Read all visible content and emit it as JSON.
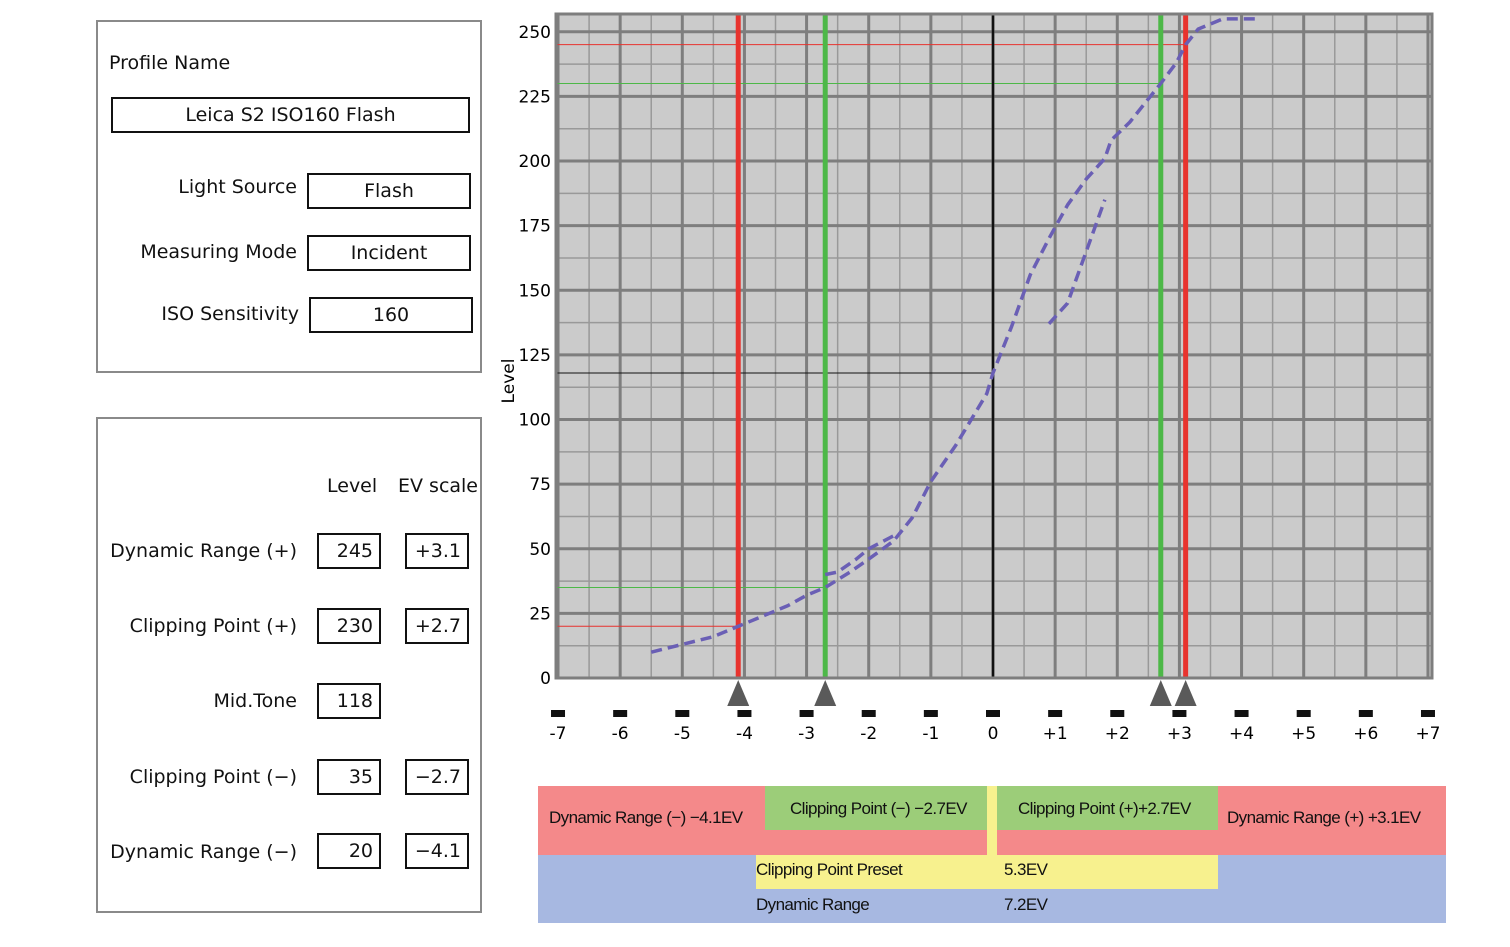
{
  "profile": {
    "name_label": "Profile Name",
    "name_value": "Leica S2 ISO160 Flash",
    "light_source_label": "Light Source",
    "light_source_value": "Flash",
    "measuring_mode_label": "Measuring Mode",
    "measuring_mode_value": "Incident",
    "iso_label": "ISO Sensitivity",
    "iso_value": "160"
  },
  "values": {
    "level_header": "Level",
    "ev_header": "EV scale",
    "rows": [
      {
        "label": "Dynamic Range (+)",
        "level": "245",
        "ev": "+3.1"
      },
      {
        "label": "Clipping Point (+)",
        "level": "230",
        "ev": "+2.7"
      },
      {
        "label": "Mid.Tone",
        "level": "118",
        "ev": ""
      },
      {
        "label": "Clipping Point (−)",
        "level": "35",
        "ev": "−2.7"
      },
      {
        "label": "Dynamic Range (−)",
        "level": "20",
        "ev": "−4.1"
      }
    ]
  },
  "chart_data": {
    "type": "line",
    "ylabel": "Level",
    "xlabel": "",
    "xlim": [
      -7,
      7
    ],
    "ylim": [
      0,
      255
    ],
    "y_ticks": [
      0,
      25,
      50,
      75,
      100,
      125,
      150,
      175,
      200,
      225,
      250
    ],
    "x_ticks": [
      -7,
      -6,
      -5,
      -4,
      -3,
      -2,
      -1,
      0,
      1,
      2,
      3,
      4,
      5,
      6,
      7
    ],
    "x_tick_labels": [
      "-7",
      "-6",
      "-5",
      "-4",
      "-3",
      "-2",
      "-1",
      "0",
      "+1",
      "+2",
      "+3",
      "+4",
      "+5",
      "+6",
      "+7"
    ],
    "grid": true,
    "curve": {
      "color": "#6a5fb5",
      "x": [
        -5.5,
        -5.0,
        -4.5,
        -4.1,
        -3.7,
        -3.3,
        -3.0,
        -2.7,
        -2.3,
        -2.0,
        -1.6,
        -1.3,
        -1.0,
        -0.6,
        -0.1,
        0.0,
        0.3,
        0.6,
        0.9,
        1.2,
        1.5,
        1.8,
        1.9,
        2.2,
        2.5,
        2.7,
        2.95,
        3.1,
        3.3,
        3.7,
        4.3
      ],
      "y": [
        10,
        13,
        16,
        20,
        24,
        28,
        32,
        35,
        41,
        46,
        53,
        62,
        76,
        90,
        110,
        118,
        136,
        156,
        170,
        183,
        193,
        201,
        208,
        215,
        224,
        230,
        238,
        245,
        251,
        255,
        255
      ]
    },
    "curve_secondary": {
      "x": [
        -2.7,
        -2.5,
        -2.2,
        -2.0,
        -1.6
      ],
      "y": [
        40,
        41,
        46,
        50,
        55
      ]
    },
    "curve_secondary_upper": {
      "x": [
        0.9,
        1.2,
        1.5,
        1.8
      ],
      "y": [
        137,
        145,
        165,
        185
      ]
    },
    "markers": [
      {
        "name": "dynamic-range-minus",
        "ev": -4.1,
        "level": 20,
        "color": "#e8332e"
      },
      {
        "name": "clipping-point-minus",
        "ev": -2.7,
        "level": 35,
        "color": "#4db848"
      },
      {
        "name": "mid-tone",
        "ev": 0,
        "level": 118,
        "color": "#111111"
      },
      {
        "name": "clipping-point-plus",
        "ev": 2.7,
        "level": 230,
        "color": "#4db848"
      },
      {
        "name": "dynamic-range-plus",
        "ev": 3.1,
        "level": 245,
        "color": "#e8332e"
      }
    ]
  },
  "summary": {
    "dr_minus": "Dynamic Range (−) −4.1EV",
    "cp_minus": "Clipping Point (−) −2.7EV",
    "cp_plus": "Clipping Point (+)+2.7EV",
    "dr_plus": "Dynamic Range (+) +3.1EV",
    "cp_preset_label": "Clipping Point Preset",
    "cp_preset_value": "5.3EV",
    "dr_label": "Dynamic Range",
    "dr_value": "7.2EV"
  },
  "colors": {
    "plot_bg": "#cbcbcb",
    "band_red": "#f4898a",
    "band_green": "#9ccd79",
    "band_yellow": "#f7f18e",
    "band_blue": "#a7b8e1"
  }
}
